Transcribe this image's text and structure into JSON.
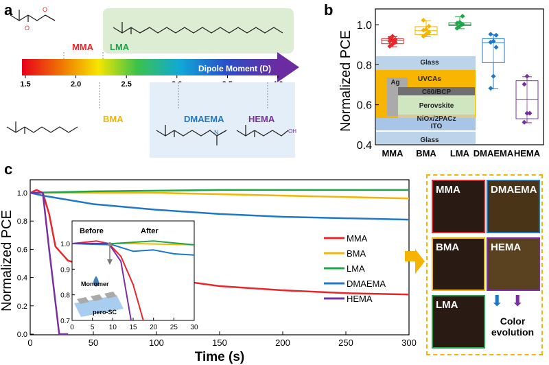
{
  "panel_labels": [
    "a",
    "b",
    "c"
  ],
  "panel_a": {
    "scale_title": "Dipole Moment (D)",
    "ticks": [
      "1.5",
      "2.0",
      "2.5",
      "3.0",
      "3.5",
      "4.0"
    ],
    "monomers": [
      {
        "name": "MMA",
        "color": "#e8262a"
      },
      {
        "name": "LMA",
        "color": "#1fa64a"
      },
      {
        "name": "BMA",
        "color": "#f5b400"
      },
      {
        "name": "DMAEMA",
        "color": "#1e78c8"
      },
      {
        "name": "HEMA",
        "color": "#7a2fa0"
      }
    ],
    "oh_label": "OH",
    "n_label": "N"
  },
  "chart_data": [
    {
      "type": "box",
      "ylabel": "Normalized PCE",
      "ylim": [
        0.4,
        1.08
      ],
      "yticks": [
        "0.4",
        "0.6",
        "0.8",
        "1.0"
      ],
      "categories": [
        "MMA",
        "BMA",
        "LMA",
        "DMAEMA",
        "HEMA"
      ],
      "colors": [
        "#e8262a",
        "#f5b400",
        "#1fa64a",
        "#1e78c8",
        "#7a2fa0"
      ],
      "boxes": [
        {
          "min": 0.89,
          "q1": 0.905,
          "median": 0.92,
          "q3": 0.93,
          "max": 0.94,
          "points": [
            0.89,
            0.9,
            0.91,
            0.915,
            0.92,
            0.925,
            0.93,
            0.94
          ]
        },
        {
          "min": 0.94,
          "q1": 0.95,
          "median": 0.97,
          "q3": 0.99,
          "max": 1.02,
          "points": [
            0.94,
            0.95,
            0.96,
            0.97,
            0.975,
            0.99,
            1.02
          ]
        },
        {
          "min": 0.98,
          "q1": 0.995,
          "median": 1.0,
          "q3": 1.01,
          "max": 1.04,
          "points": [
            0.98,
            0.99,
            1.0,
            1.005,
            1.01,
            1.04
          ]
        },
        {
          "min": 0.68,
          "q1": 0.81,
          "median": 0.91,
          "q3": 0.93,
          "max": 0.95,
          "points": [
            0.68,
            0.74,
            0.885,
            0.91,
            0.915,
            0.945,
            0.95
          ]
        },
        {
          "min": 0.51,
          "q1": 0.53,
          "median": 0.625,
          "q3": 0.72,
          "max": 0.74,
          "points": [
            0.51,
            0.555,
            0.555,
            0.7,
            0.74
          ]
        }
      ]
    },
    {
      "type": "line",
      "xlabel": "Time (s)",
      "ylabel": "Normalized PCE",
      "xlim": [
        0,
        300
      ],
      "ylim": [
        0,
        1.08
      ],
      "xticks": [
        "0",
        "50",
        "100",
        "150",
        "200",
        "250",
        "300"
      ],
      "yticks": [
        "0.0",
        "0.2",
        "0.4",
        "0.6",
        "0.8",
        "1.0"
      ],
      "legend_position": "right",
      "series": [
        {
          "name": "MMA",
          "color": "#e8262a",
          "points": [
            [
              0,
              1
            ],
            [
              5,
              1.02
            ],
            [
              10,
              1.0
            ],
            [
              15,
              0.85
            ],
            [
              20,
              0.62
            ],
            [
              30,
              0.52
            ],
            [
              50,
              0.47
            ],
            [
              100,
              0.4
            ],
            [
              150,
              0.34
            ],
            [
              200,
              0.31
            ],
            [
              250,
              0.29
            ],
            [
              300,
              0.28
            ]
          ]
        },
        {
          "name": "BMA",
          "color": "#f5b400",
          "points": [
            [
              0,
              1
            ],
            [
              100,
              1.0
            ],
            [
              200,
              0.98
            ],
            [
              300,
              0.96
            ]
          ]
        },
        {
          "name": "LMA",
          "color": "#1fa64a",
          "points": [
            [
              0,
              1
            ],
            [
              50,
              1.01
            ],
            [
              150,
              1.02
            ],
            [
              300,
              1.02
            ]
          ]
        },
        {
          "name": "DMAEMA",
          "color": "#1e78c8",
          "points": [
            [
              0,
              1
            ],
            [
              10,
              0.98
            ],
            [
              50,
              0.92
            ],
            [
              100,
              0.88
            ],
            [
              150,
              0.85
            ],
            [
              200,
              0.83
            ],
            [
              250,
              0.82
            ],
            [
              300,
              0.81
            ]
          ]
        },
        {
          "name": "HEMA",
          "color": "#7a2fa0",
          "points": [
            [
              0,
              1
            ],
            [
              10,
              1.0
            ],
            [
              15,
              0.6
            ],
            [
              23,
              0
            ],
            [
              30,
              0
            ]
          ]
        }
      ]
    },
    {
      "type": "line",
      "inset": true,
      "xlim": [
        0,
        30
      ],
      "ylim": [
        0.7,
        1.07
      ],
      "xticks": [
        "0",
        "5",
        "10",
        "15",
        "20",
        "25",
        "30"
      ],
      "yticks": [
        "0.7",
        "0.8",
        "0.9",
        "1.0"
      ],
      "annotations": [
        "Before",
        "After",
        "Monomer",
        "pero-SC"
      ],
      "series": [
        {
          "name": "MMA",
          "color": "#e8262a",
          "points": [
            [
              0,
              1
            ],
            [
              6,
              1.01
            ],
            [
              9,
              1.0
            ],
            [
              12,
              0.95
            ],
            [
              15,
              0.84
            ],
            [
              17.5,
              0.7
            ]
          ]
        },
        {
          "name": "BMA",
          "color": "#f5b400",
          "points": [
            [
              0,
              1
            ],
            [
              15,
              1.0
            ],
            [
              30,
              0.995
            ]
          ]
        },
        {
          "name": "LMA",
          "color": "#1fa64a",
          "points": [
            [
              0,
              1
            ],
            [
              10,
              1.0
            ],
            [
              20,
              1.01
            ],
            [
              30,
              0.995
            ]
          ]
        },
        {
          "name": "DMAEMA",
          "color": "#1e78c8",
          "points": [
            [
              0,
              1
            ],
            [
              10,
              0.995
            ],
            [
              15,
              0.97
            ],
            [
              20,
              0.975
            ],
            [
              25,
              0.96
            ],
            [
              30,
              0.955
            ]
          ]
        },
        {
          "name": "HEMA",
          "color": "#7a2fa0",
          "points": [
            [
              0,
              1
            ],
            [
              9,
              1.0
            ],
            [
              12,
              0.93
            ],
            [
              14.5,
              0.7
            ]
          ]
        }
      ]
    }
  ],
  "device_stack": [
    "Glass",
    "UVCAs",
    "Ag",
    "C60/BCP",
    "Perovskite",
    "NiOx/2PACz",
    "ITO",
    "Glass"
  ],
  "photos": {
    "labels": [
      "MMA",
      "DMAEMA",
      "BMA",
      "HEMA",
      "LMA"
    ],
    "caption": "Color evolution"
  }
}
